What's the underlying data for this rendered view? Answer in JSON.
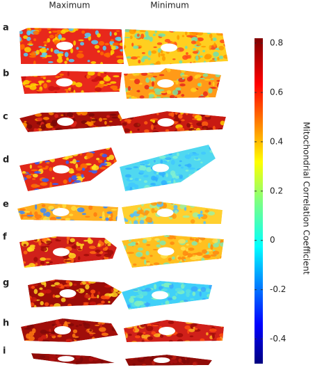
{
  "columns": [
    "Maximum",
    "Minimum"
  ],
  "rows": [
    "a",
    "b",
    "c",
    "d",
    "e",
    "f",
    "g",
    "h",
    "i"
  ],
  "colorbar": {
    "label": "Mitochondrial Correlation Coefficient",
    "lim": [
      -0.5,
      0.82
    ],
    "ticks": [
      -0.4,
      -0.2,
      0,
      0.2,
      0.4,
      0.6,
      0.8
    ]
  }
}
